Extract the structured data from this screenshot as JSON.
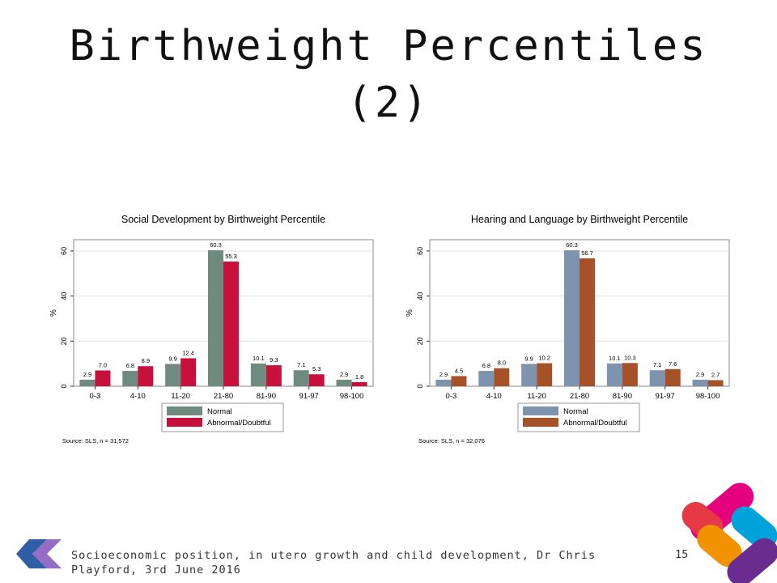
{
  "slide": {
    "title_line1": "Birthweight Percentiles",
    "title_line2": "(2)",
    "footer": "Socioeconomic position, in utero growth and child development, Dr Chris Playford, 3rd June 2016",
    "page_number": "15"
  },
  "colors": {
    "chart1_normal": "#6f8a7e",
    "chart1_abnormal": "#c8103d",
    "chart2_normal": "#7e93ae",
    "chart2_abnormal": "#a65128",
    "logo_pink": "#e5007e",
    "logo_blue": "#00a3d9",
    "logo_orange": "#f39200",
    "logo_purple": "#6a2c8f",
    "logo_red": "#e63946"
  },
  "chart_data": [
    {
      "type": "bar",
      "title": "Social Development by Birthweight Percentile",
      "ylabel": "%",
      "xlabel": "",
      "ylim": [
        0,
        65
      ],
      "yticks": [
        0,
        20,
        40,
        60
      ],
      "grid": true,
      "legend_placement": "bottom",
      "categories": [
        "0-3",
        "4-10",
        "11-20",
        "21-80",
        "81-90",
        "91-97",
        "98-100"
      ],
      "series": [
        {
          "name": "Normal",
          "values": [
            2.9,
            6.8,
            9.9,
            60.3,
            10.1,
            7.1,
            2.9
          ]
        },
        {
          "name": "Abnormal/Doubtful",
          "values": [
            7.0,
            8.9,
            12.4,
            55.3,
            9.3,
            5.3,
            1.8
          ]
        }
      ],
      "value_labels": [
        [
          "2.9",
          "6.8",
          "9.9",
          "60.3",
          "10.1",
          "7.1",
          "2.9"
        ],
        [
          "7.0",
          "8.9",
          "12.4",
          "55.3",
          "9.3",
          "5.3",
          "1.8"
        ]
      ],
      "source": "Source: SLS, n = 31,572"
    },
    {
      "type": "bar",
      "title": "Hearing and Language by Birthweight Percentile",
      "ylabel": "%",
      "xlabel": "",
      "ylim": [
        0,
        65
      ],
      "yticks": [
        0,
        20,
        40,
        60
      ],
      "grid": true,
      "legend_placement": "bottom",
      "categories": [
        "0-3",
        "4-10",
        "11-20",
        "21-80",
        "81-90",
        "91-97",
        "98-100"
      ],
      "series": [
        {
          "name": "Normal",
          "values": [
            2.9,
            6.8,
            9.9,
            60.3,
            10.1,
            7.1,
            2.9
          ]
        },
        {
          "name": "Abnormal/Doubtful",
          "values": [
            4.5,
            8.0,
            10.2,
            56.7,
            10.3,
            7.6,
            2.7
          ]
        }
      ],
      "value_labels": [
        [
          "2.9",
          "6.8",
          "9.9",
          "60.3",
          "10.1",
          "7.1",
          "2.9"
        ],
        [
          "4.5",
          "8.0",
          "10.2",
          "56.7",
          "10.3",
          "7.6",
          "2.7"
        ]
      ],
      "source": "Source: SLS, n = 32,076"
    }
  ]
}
